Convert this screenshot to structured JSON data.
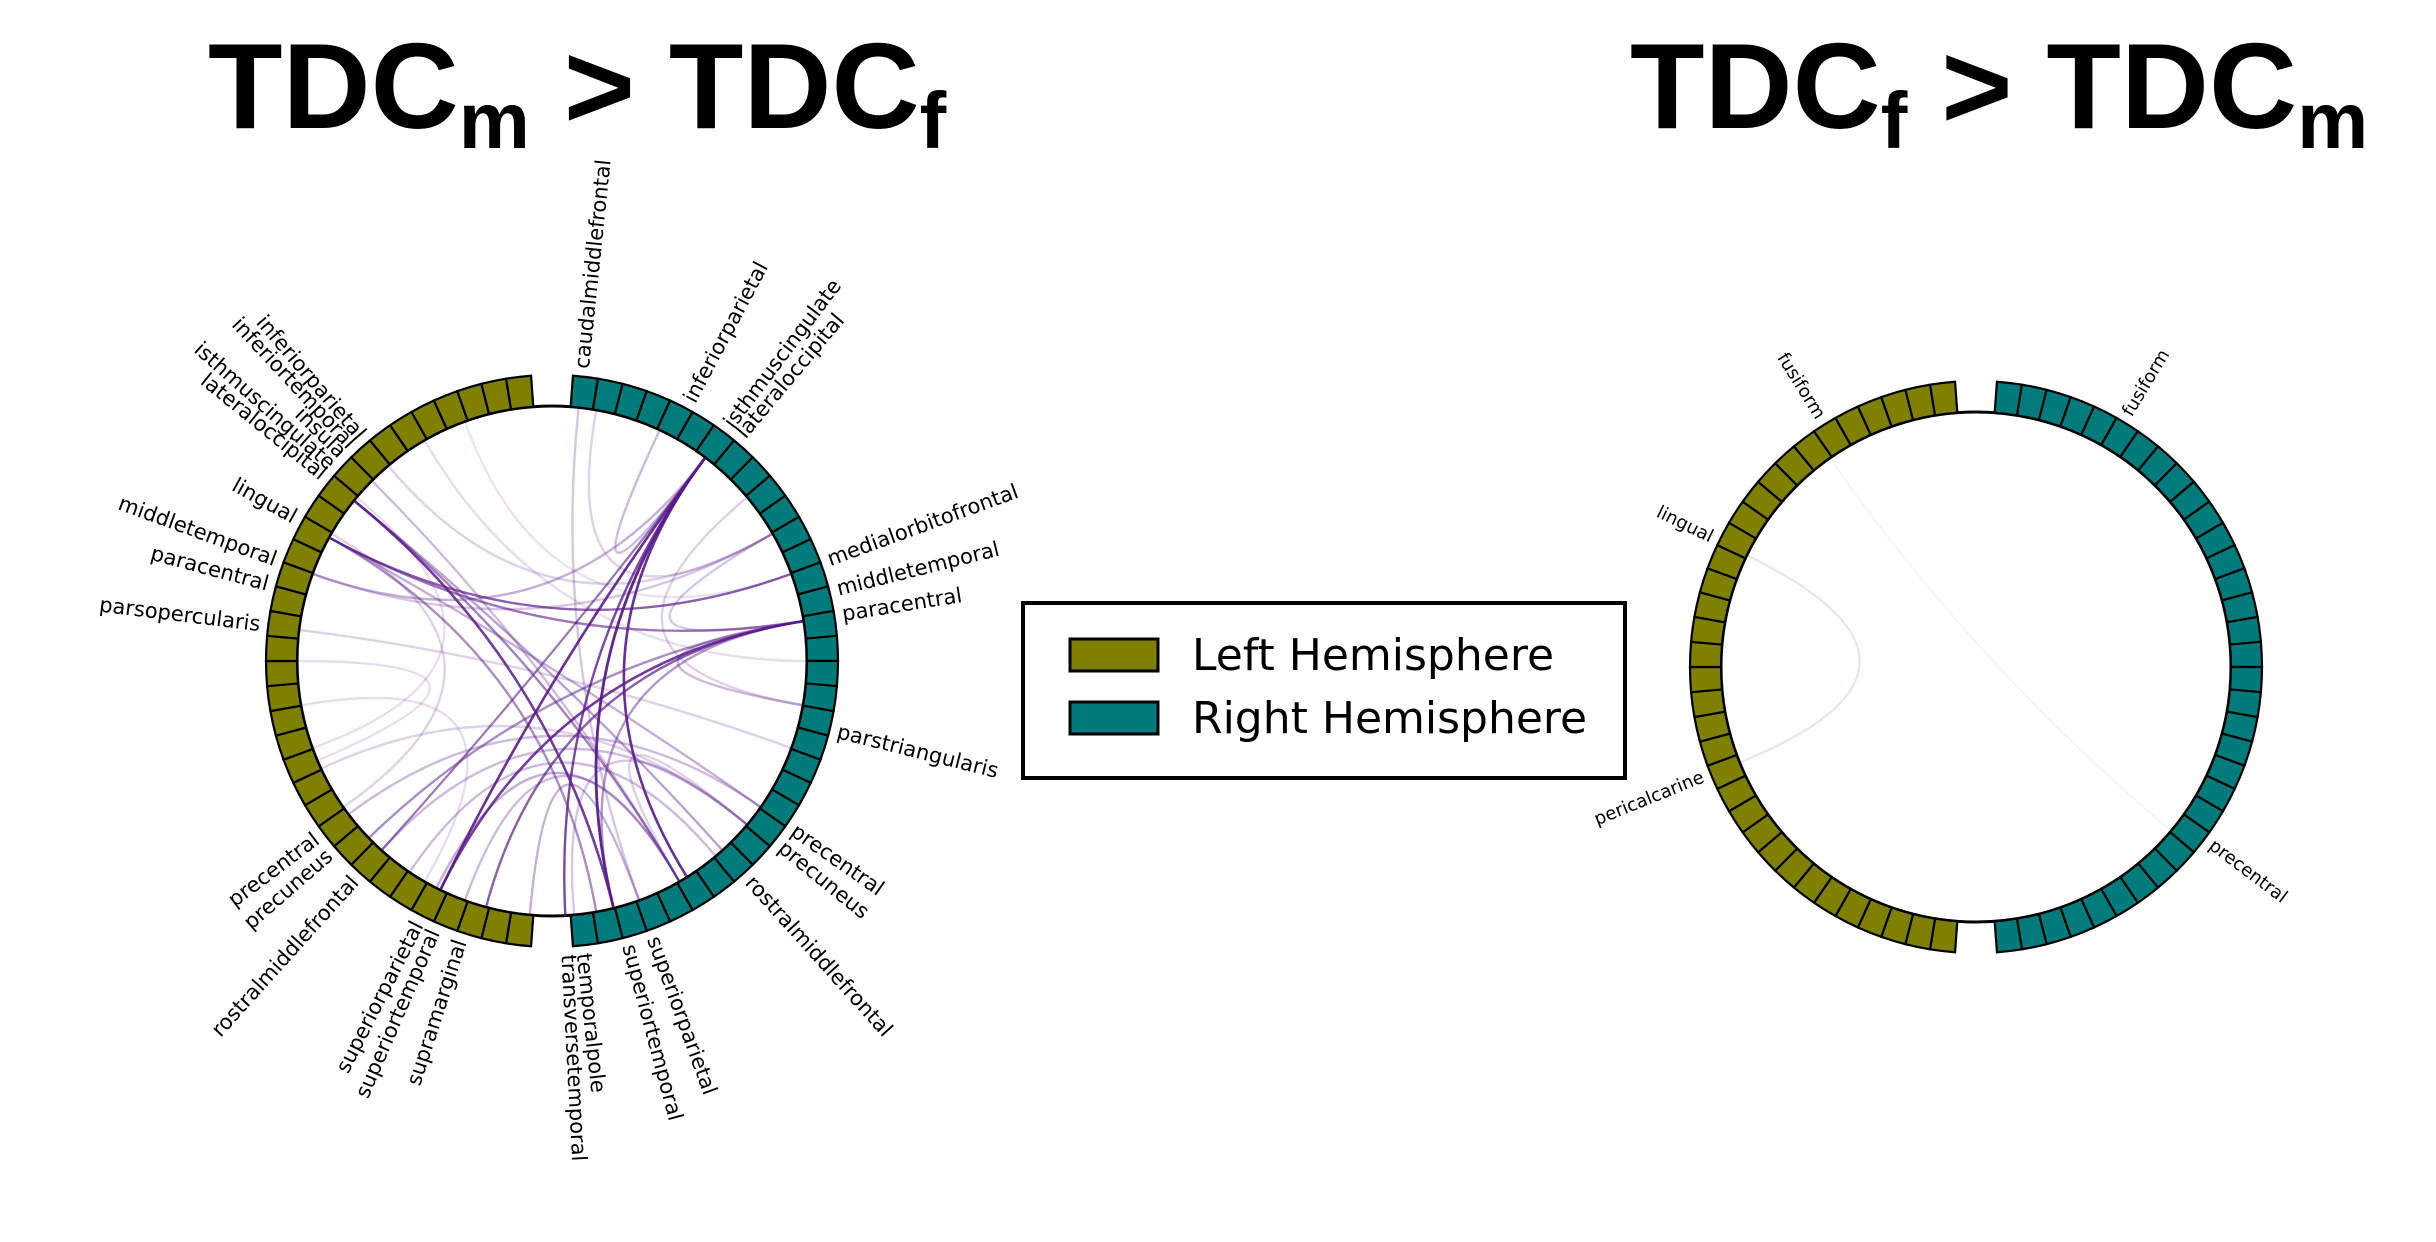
{
  "colors": {
    "left_hemisphere": "#808000",
    "right_hemisphere": "#007b7b",
    "connection": "#5a1a8c",
    "text": "#000000"
  },
  "legend": {
    "left_label": "Left Hemisphere",
    "right_label": "Right Hemisphere"
  },
  "panels": [
    {
      "title": {
        "prefix": "TDC",
        "sub1": "m",
        "middle": " > TDC",
        "sub2": "f"
      },
      "left_labels": [
        "inferiorparietal",
        "inferiortemporal",
        "insula",
        "isthmuscingulate",
        "lateraloccipital",
        "lingual",
        "middletemporal",
        "paracentral",
        "parsopercularis",
        "precentral",
        "precuneus",
        "rostralmiddlefrontal",
        "superiorparietal",
        "superiortemporal",
        "supramarginal"
      ],
      "right_labels": [
        "caudalmiddlefrontal",
        "inferiorparietal",
        "isthmuscingulate",
        "lateraloccipital",
        "medialorbitofrontal",
        "middletemporal",
        "paracentral",
        "parstriangularis",
        "precentral",
        "precuneus",
        "rostralmiddlefrontal",
        "superiorparietal",
        "superiortemporal",
        "temporalpole",
        "transversetemporal"
      ]
    },
    {
      "title": {
        "prefix": "TDC",
        "sub1": "f",
        "middle": " > TDC",
        "sub2": "m"
      },
      "left_labels": [
        "fusiform",
        "lingual",
        "pericalcarine"
      ],
      "right_labels": [
        "fusiform",
        "precentral"
      ]
    }
  ]
}
